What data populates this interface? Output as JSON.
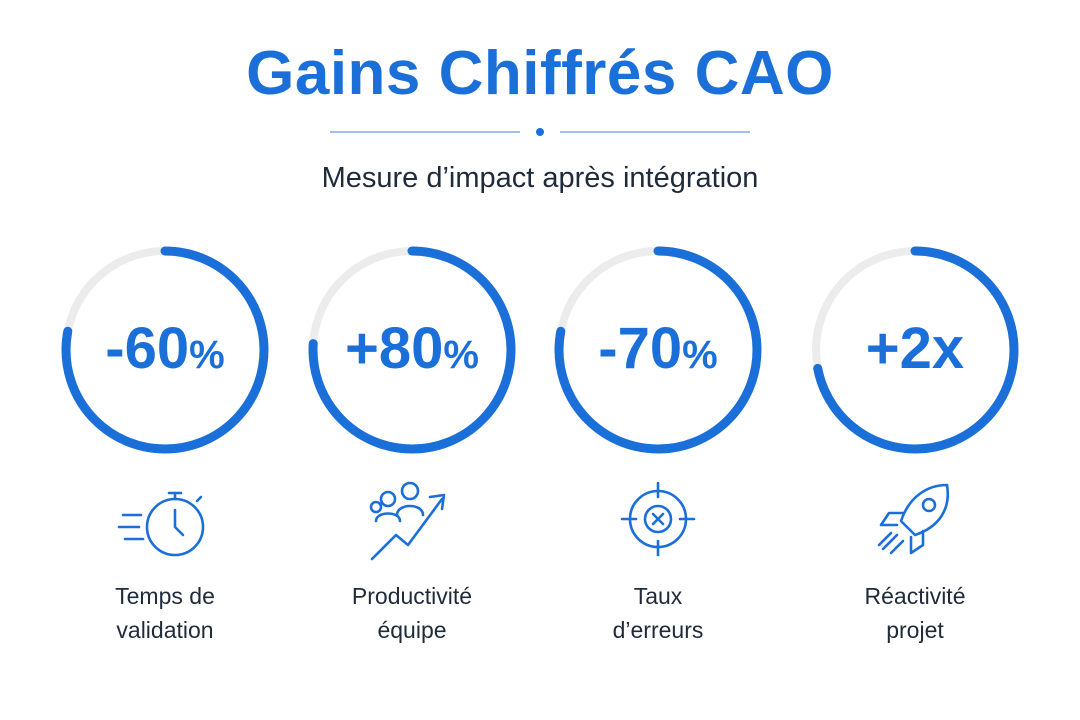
{
  "header": {
    "title": "Gains Chiffrés CAO",
    "subtitle": "Mesure d’impact après intégration"
  },
  "colors": {
    "accent": "#1a6fd8",
    "track": "#ececec",
    "text": "#1f2a3a"
  },
  "metrics": [
    {
      "value": "-60",
      "unit": "%",
      "progress": 0.78,
      "icon": "stopwatch-icon",
      "label_line1": "Temps de",
      "label_line2": "validation"
    },
    {
      "value": "+80",
      "unit": "%",
      "progress": 0.76,
      "icon": "team-growth-icon",
      "label_line1": "Productivité",
      "label_line2": "équipe"
    },
    {
      "value": "-70",
      "unit": "%",
      "progress": 0.78,
      "icon": "target-icon",
      "label_line1": "Taux",
      "label_line2": "d’erreurs"
    },
    {
      "value": "+2x",
      "unit": "",
      "progress": 0.72,
      "icon": "rocket-icon",
      "label_line1": "Réactivité",
      "label_line2": "projet"
    }
  ]
}
